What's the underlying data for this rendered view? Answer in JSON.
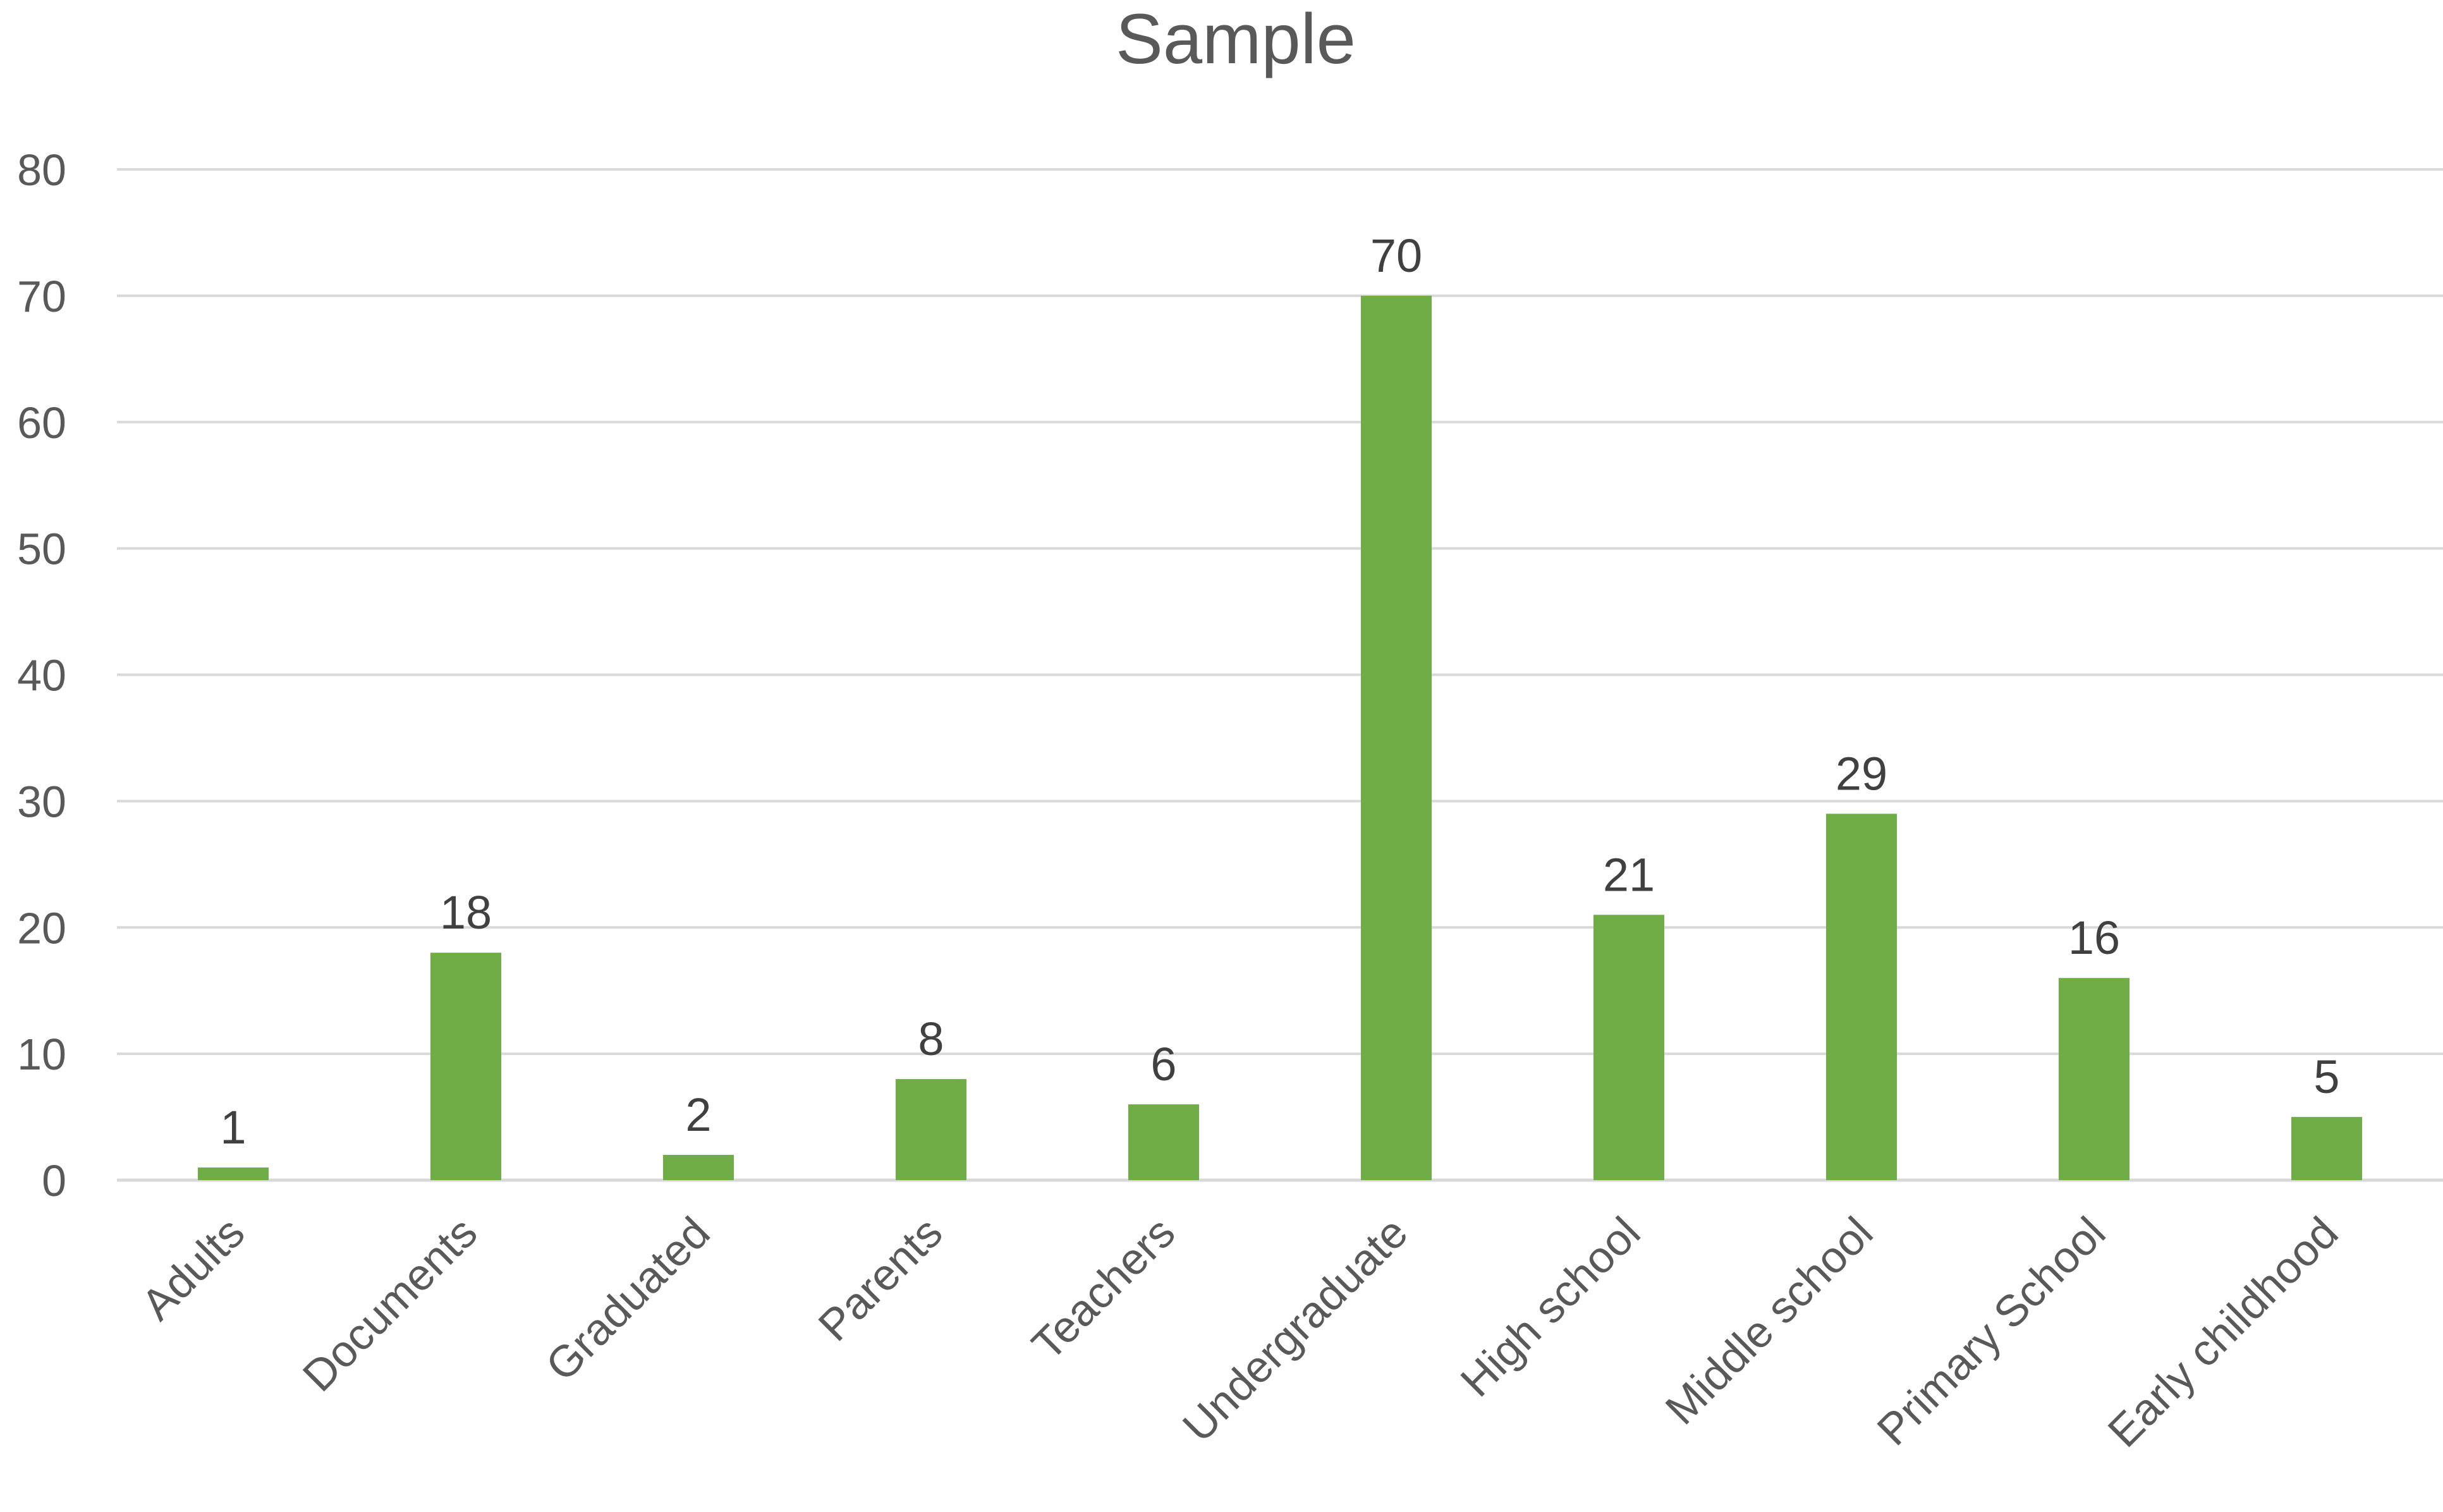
{
  "chart_data": {
    "type": "bar",
    "title": "Sample",
    "categories": [
      "Adults",
      "Documents",
      "Graduated",
      "Parents",
      "Teachers",
      "Undergraduate",
      "High school",
      "Middle school",
      "Primary School",
      "Early childhood"
    ],
    "values": [
      1,
      18,
      2,
      8,
      6,
      70,
      21,
      29,
      16,
      5
    ],
    "ylim": [
      0,
      80
    ],
    "yticks": [
      0,
      10,
      20,
      30,
      40,
      50,
      60,
      70,
      80
    ],
    "xlabel": "",
    "ylabel": "",
    "grid": true,
    "legend": "none",
    "data_labels": true,
    "bar_color": "#70ad47"
  }
}
